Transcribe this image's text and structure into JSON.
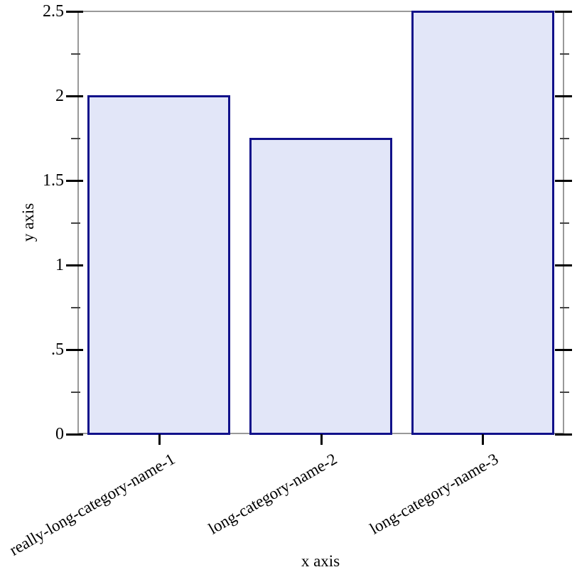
{
  "chart_data": {
    "type": "bar",
    "title": "",
    "categories": [
      "really-long-category-name-1",
      "long-category-name-2",
      "long-category-name-3"
    ],
    "values": [
      2,
      1.75,
      2.5
    ],
    "xlabel": "x axis",
    "ylabel": "y axis",
    "ylim": [
      0,
      2.5
    ],
    "y_major_ticks": [
      {
        "value": 0,
        "label": "0"
      },
      {
        "value": 0.5,
        "label": ".5"
      },
      {
        "value": 1,
        "label": "1"
      },
      {
        "value": 1.5,
        "label": "1.5"
      },
      {
        "value": 2,
        "label": "2"
      },
      {
        "value": 2.5,
        "label": "2.5"
      }
    ],
    "y_minor_ticks": [
      0.25,
      0.75,
      1.25,
      1.75,
      2.25
    ],
    "grid": false,
    "legend": "none",
    "category_label_angle_deg": -30,
    "colors": {
      "bar_fill": "#e2e6f8",
      "bar_line": "#11118a",
      "axis_line": "#999999",
      "major_tick": "#000000",
      "minor_tick": "#444444",
      "text": "#000000"
    }
  }
}
